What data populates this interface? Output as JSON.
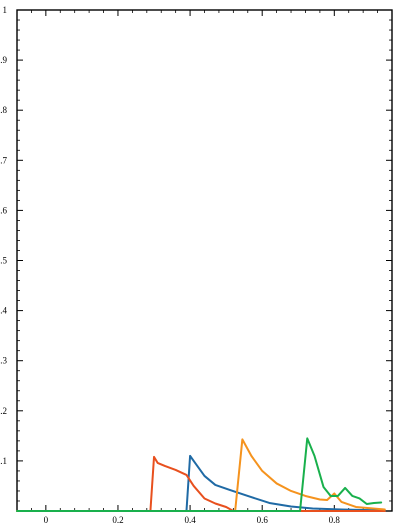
{
  "chart_data": {
    "type": "line",
    "title": "",
    "xlabel": "",
    "ylabel": "",
    "xlim": [
      -0.08,
      0.96
    ],
    "ylim": [
      0,
      1
    ],
    "x_ticks": [
      0,
      0.2,
      0.4,
      0.6,
      0.8
    ],
    "x_tick_labels": [
      "0",
      "0.2",
      "0.4",
      "0.6",
      "0.8"
    ],
    "y_ticks": [
      0.1,
      0.2,
      0.3,
      0.4,
      0.5,
      0.6,
      0.7,
      0.8,
      0.9,
      1
    ],
    "y_tick_labels": [
      "0.1",
      "0.2",
      "0.3",
      "0.4",
      "0.5",
      "0.6",
      "0.7",
      "0.8",
      "0.9",
      "1"
    ],
    "grid": false,
    "series": [
      {
        "color": "#1f6aa5",
        "x": [
          -0.08,
          0.39,
          0.4,
          0.415,
          0.44,
          0.47,
          0.51,
          0.56,
          0.62,
          0.68,
          0.74,
          0.82,
          0.88,
          0.94
        ],
        "y": [
          0,
          0,
          0.11,
          0.095,
          0.07,
          0.052,
          0.042,
          0.03,
          0.016,
          0.009,
          0.005,
          0.003,
          0.002,
          0.001
        ]
      },
      {
        "color": "#e8501e",
        "x": [
          -0.08,
          0.29,
          0.3,
          0.31,
          0.33,
          0.36,
          0.39,
          0.41,
          0.44,
          0.47,
          0.5,
          0.52,
          0.6,
          0.94
        ],
        "y": [
          0,
          0,
          0.108,
          0.096,
          0.09,
          0.082,
          0.072,
          0.05,
          0.025,
          0.015,
          0.008,
          0,
          0,
          0
        ]
      },
      {
        "color": "#f5931e",
        "x": [
          -0.08,
          0.525,
          0.545,
          0.57,
          0.6,
          0.64,
          0.68,
          0.72,
          0.76,
          0.78,
          0.8,
          0.82,
          0.86,
          0.94
        ],
        "y": [
          0,
          0,
          0.143,
          0.11,
          0.08,
          0.055,
          0.04,
          0.03,
          0.023,
          0.022,
          0.035,
          0.018,
          0.008,
          0.003
        ]
      },
      {
        "color": "#19b04c",
        "x": [
          -0.08,
          0.705,
          0.725,
          0.745,
          0.77,
          0.79,
          0.81,
          0.83,
          0.85,
          0.87,
          0.89,
          0.91,
          0.93
        ],
        "y": [
          0,
          0,
          0.145,
          0.11,
          0.048,
          0.03,
          0.03,
          0.046,
          0.03,
          0.025,
          0.014,
          0.016,
          0.017
        ]
      }
    ]
  }
}
